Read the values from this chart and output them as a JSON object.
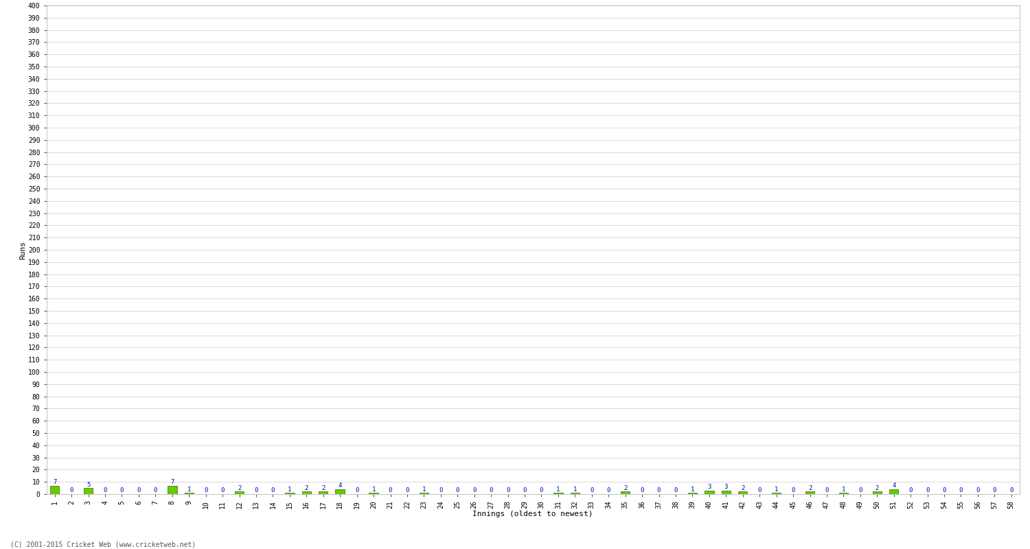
{
  "ylabel": "Runs",
  "xlabel": "Innings (oldest to newest)",
  "ylim": [
    0,
    400
  ],
  "yticks": [
    0,
    10,
    20,
    30,
    40,
    50,
    60,
    70,
    80,
    90,
    100,
    110,
    120,
    130,
    140,
    150,
    160,
    170,
    180,
    190,
    200,
    210,
    220,
    230,
    240,
    250,
    260,
    270,
    280,
    290,
    300,
    310,
    320,
    330,
    340,
    350,
    360,
    370,
    380,
    390,
    400
  ],
  "innings_labels": [
    "1",
    "2",
    "3",
    "4",
    "5",
    "6",
    "7",
    "8",
    "9",
    "10",
    "11",
    "12",
    "13",
    "14",
    "15",
    "16",
    "17",
    "18",
    "19",
    "20",
    "21",
    "22",
    "23",
    "24",
    "25",
    "26",
    "27",
    "28",
    "29",
    "30",
    "31",
    "32",
    "33",
    "34",
    "35",
    "36",
    "37",
    "38",
    "39",
    "40",
    "41",
    "42",
    "43",
    "44",
    "45",
    "46",
    "47",
    "48",
    "49",
    "50",
    "51",
    "52",
    "53",
    "54",
    "55",
    "56",
    "57",
    "58"
  ],
  "runs": [
    7,
    0,
    5,
    0,
    0,
    0,
    0,
    7,
    1,
    0,
    0,
    2,
    0,
    0,
    1,
    2,
    2,
    4,
    0,
    1,
    0,
    0,
    1,
    0,
    0,
    0,
    0,
    0,
    0,
    0,
    1,
    1,
    0,
    0,
    2,
    0,
    0,
    0,
    1,
    3,
    3,
    2,
    0,
    1,
    0,
    2,
    0,
    1,
    0,
    2,
    4,
    0,
    0,
    0,
    0,
    0,
    0,
    0
  ],
  "bar_color": "#66cc00",
  "bar_edge_color": "#336600",
  "annotation_color": "#0000cc",
  "background_color": "#ffffff",
  "grid_color": "#cccccc",
  "spine_color": "#aaaaaa",
  "footer": "(C) 2001-2015 Cricket Web (www.cricketweb.net)",
  "tick_label_fontsize": 7,
  "bar_width": 0.55,
  "annotation_fontsize": 6.5
}
